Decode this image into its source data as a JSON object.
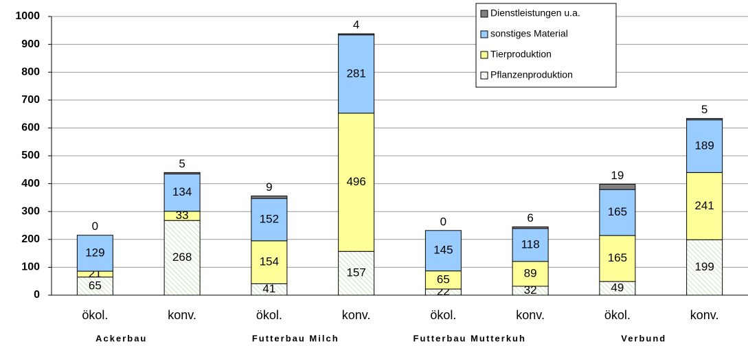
{
  "chart_data": {
    "type": "bar",
    "stacked": true,
    "categories": [
      "ökol.",
      "konv.",
      "ökol.",
      "konv.",
      "ökol.",
      "konv.",
      "ökol.",
      "konv."
    ],
    "groups": [
      "Ackerbau",
      "Futterbau Milch",
      "Futterbau Mutterkuh",
      "Verbund"
    ],
    "series": [
      {
        "name": "Pflanzenproduktion",
        "color": "#ffffff",
        "values": [
          65,
          268,
          41,
          157,
          22,
          32,
          49,
          199
        ]
      },
      {
        "name": "Tierproduktion",
        "color": "#ffff99",
        "values": [
          21,
          33,
          154,
          496,
          65,
          89,
          165,
          241
        ]
      },
      {
        "name": "sonstiges Material",
        "color": "#99ccff",
        "values": [
          129,
          134,
          152,
          281,
          145,
          118,
          165,
          189
        ]
      },
      {
        "name": "Dienstleistungen u.a.",
        "color": "#808080",
        "values": [
          0,
          5,
          9,
          4,
          0,
          6,
          19,
          5
        ]
      }
    ],
    "ylim": [
      0,
      1000
    ],
    "yticks": [
      0,
      100,
      200,
      300,
      400,
      500,
      600,
      700,
      800,
      900,
      1000
    ],
    "grid": true,
    "legend": "upper right"
  }
}
